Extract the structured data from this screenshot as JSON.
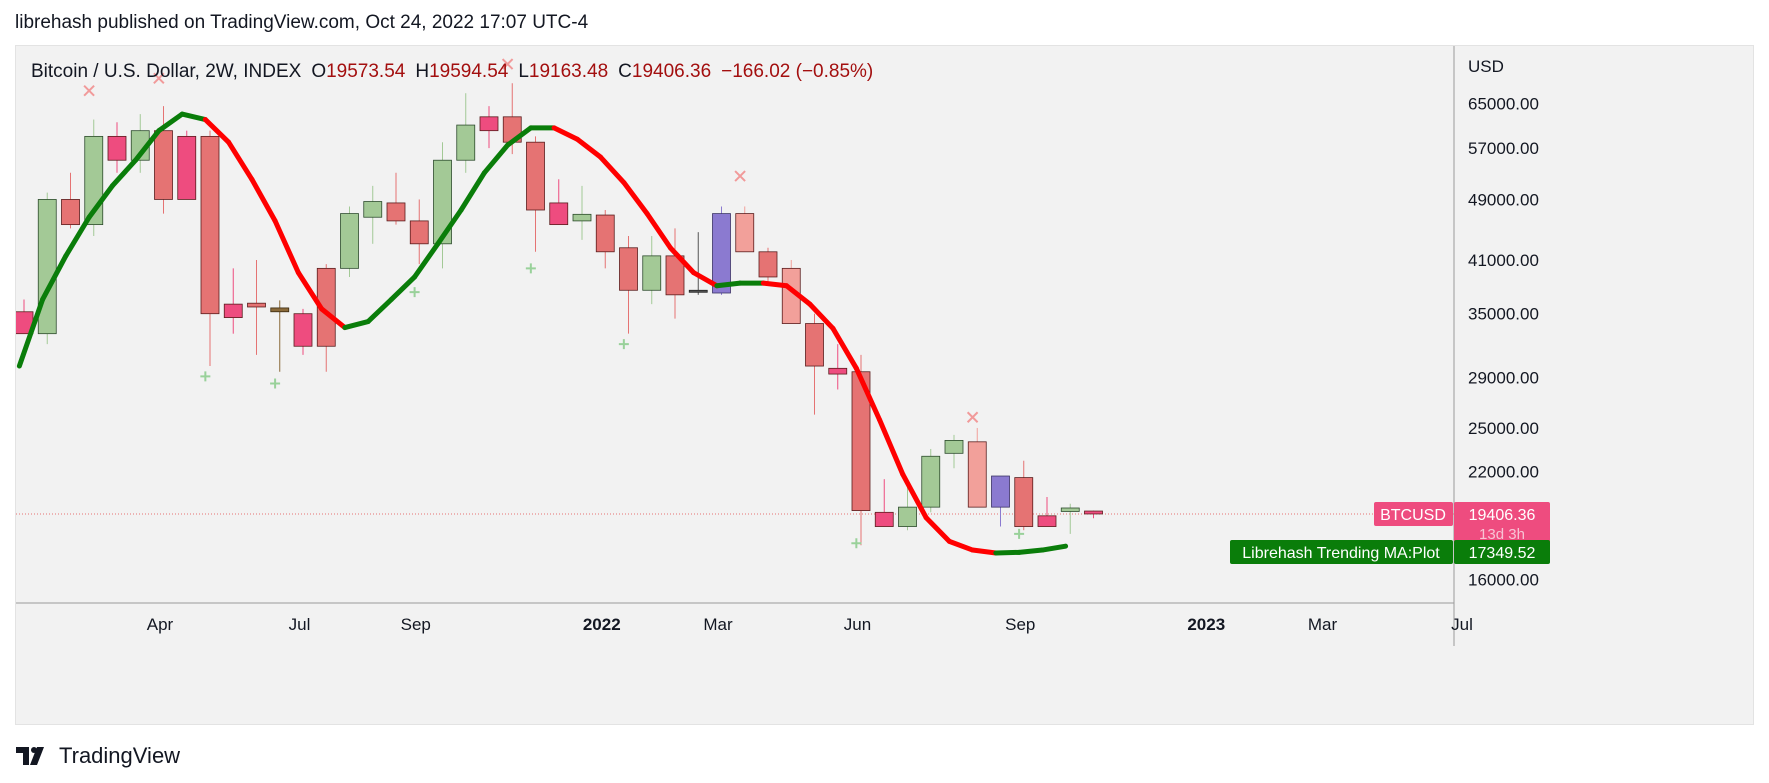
{
  "header": {
    "published": "librehash published on TradingView.com, Oct 24, 2022 17:07 UTC-4"
  },
  "legend": {
    "symbol": "Bitcoin / U.S. Dollar, 2W, INDEX",
    "o_label": "O",
    "o_value": "19573.54",
    "h_label": "H",
    "h_value": "19594.54",
    "l_label": "L",
    "l_value": "19163.48",
    "c_label": "C",
    "c_value": "19406.36",
    "change": "−166.02 (−0.85%)"
  },
  "footer": {
    "brand": "TradingView"
  },
  "colors": {
    "background": "#f2f2f2",
    "ma_up": "#0a7d0a",
    "ma_down": "#ff0000",
    "candle_up": "#a3c996",
    "candle_down": "#e57373",
    "candle_pink": "#ee4c7f",
    "candle_purple": "#8b7ad0",
    "candle_salmon": "#f2a09a",
    "buy_marker": "#99d19a",
    "sell_marker": "#f19a9a",
    "price_line": "#e57373"
  },
  "chart_data": {
    "type": "candlestick",
    "title": "Bitcoin / U.S. Dollar, 2W, INDEX",
    "interval": "2W",
    "currency": "USD",
    "y_scale": "log",
    "ylim": [
      14000,
      76000
    ],
    "y_ticks": [
      65000,
      57000,
      49000,
      41000,
      35000,
      29000,
      25000,
      22000,
      16000
    ],
    "y_tick_labels": [
      "65000.00",
      "57000.00",
      "49000.00",
      "41000.00",
      "35000.00",
      "29000.00",
      "25000.00",
      "22000.00",
      "16000.00"
    ],
    "x_ticks": [
      {
        "label": "Apr",
        "index": 5.85,
        "bold": false
      },
      {
        "label": "Jul",
        "index": 11.85,
        "bold": false
      },
      {
        "label": "Sep",
        "index": 16.85,
        "bold": false
      },
      {
        "label": "2022",
        "index": 24.85,
        "bold": true
      },
      {
        "label": "Mar",
        "index": 29.85,
        "bold": false
      },
      {
        "label": "Jun",
        "index": 35.85,
        "bold": false
      },
      {
        "label": "Sep",
        "index": 42.85,
        "bold": false
      },
      {
        "label": "2023",
        "index": 50.85,
        "bold": true
      },
      {
        "label": "Mar",
        "index": 55.85,
        "bold": false
      },
      {
        "label": "Jul",
        "index": 61.85,
        "bold": false
      }
    ],
    "candles": [
      {
        "o": 35200,
        "h": 36500,
        "l": 33000,
        "c": 33000,
        "color": "pink"
      },
      {
        "o": 33000,
        "h": 50000,
        "l": 32000,
        "c": 49000,
        "color": "green"
      },
      {
        "o": 49000,
        "h": 53000,
        "l": 45000,
        "c": 45500,
        "color": "red"
      },
      {
        "o": 45500,
        "h": 62000,
        "l": 44000,
        "c": 59000,
        "color": "green"
      },
      {
        "o": 59000,
        "h": 61500,
        "l": 53000,
        "c": 55000,
        "color": "pink"
      },
      {
        "o": 55000,
        "h": 63000,
        "l": 53000,
        "c": 60000,
        "color": "green"
      },
      {
        "o": 60000,
        "h": 64500,
        "l": 47000,
        "c": 49000,
        "color": "red"
      },
      {
        "o": 59000,
        "h": 60000,
        "l": 49000,
        "c": 49000,
        "color": "pink"
      },
      {
        "o": 59000,
        "h": 60000,
        "l": 30000,
        "c": 35000,
        "color": "red"
      },
      {
        "o": 36000,
        "h": 40000,
        "l": 33000,
        "c": 34600,
        "color": "pink"
      },
      {
        "o": 36100,
        "h": 41000,
        "l": 31000,
        "c": 35700,
        "color": "red"
      },
      {
        "o": 35600,
        "h": 36400,
        "l": 29500,
        "c": 35200,
        "color": "brown"
      },
      {
        "o": 35000,
        "h": 35500,
        "l": 31000,
        "c": 31800,
        "color": "pink"
      },
      {
        "o": 31800,
        "h": 40500,
        "l": 29500,
        "c": 40000,
        "color": "red"
      },
      {
        "o": 40000,
        "h": 48000,
        "l": 39000,
        "c": 47000,
        "color": "green"
      },
      {
        "o": 46500,
        "h": 51000,
        "l": 43000,
        "c": 48700,
        "color": "green"
      },
      {
        "o": 48500,
        "h": 53000,
        "l": 45500,
        "c": 46000,
        "color": "red"
      },
      {
        "o": 46000,
        "h": 49000,
        "l": 40500,
        "c": 43000,
        "color": "red"
      },
      {
        "o": 43000,
        "h": 58000,
        "l": 40000,
        "c": 55000,
        "color": "green"
      },
      {
        "o": 55000,
        "h": 67000,
        "l": 53000,
        "c": 61000,
        "color": "green"
      },
      {
        "o": 62500,
        "h": 64500,
        "l": 57000,
        "c": 60000,
        "color": "pink"
      },
      {
        "o": 62500,
        "h": 69000,
        "l": 56000,
        "c": 58000,
        "color": "red"
      },
      {
        "o": 58000,
        "h": 59000,
        "l": 42000,
        "c": 47500,
        "color": "red"
      },
      {
        "o": 48500,
        "h": 52000,
        "l": 46000,
        "c": 45500,
        "color": "pink"
      },
      {
        "o": 46000,
        "h": 51000,
        "l": 43500,
        "c": 46900,
        "color": "green"
      },
      {
        "o": 46800,
        "h": 47500,
        "l": 40000,
        "c": 42000,
        "color": "red"
      },
      {
        "o": 42500,
        "h": 44000,
        "l": 33000,
        "c": 37500,
        "color": "red"
      },
      {
        "o": 37500,
        "h": 44000,
        "l": 36000,
        "c": 41500,
        "color": "green"
      },
      {
        "o": 41500,
        "h": 45000,
        "l": 34500,
        "c": 37000,
        "color": "red"
      },
      {
        "o": 37300,
        "h": 44500,
        "l": 37000,
        "c": 37500,
        "color": "dark"
      },
      {
        "o": 37200,
        "h": 48000,
        "l": 37000,
        "c": 47000,
        "color": "purple"
      },
      {
        "o": 47000,
        "h": 48000,
        "l": 42000,
        "c": 42000,
        "color": "salmon"
      },
      {
        "o": 42000,
        "h": 42500,
        "l": 38500,
        "c": 39000,
        "color": "red"
      },
      {
        "o": 40000,
        "h": 41000,
        "l": 34000,
        "c": 34000,
        "color": "salmon"
      },
      {
        "o": 34000,
        "h": 35000,
        "l": 26000,
        "c": 30000,
        "color": "red"
      },
      {
        "o": 29800,
        "h": 32000,
        "l": 28000,
        "c": 29300,
        "color": "pink"
      },
      {
        "o": 29500,
        "h": 31000,
        "l": 17700,
        "c": 19600,
        "color": "red"
      },
      {
        "o": 19500,
        "h": 21500,
        "l": 18700,
        "c": 18700,
        "color": "pink"
      },
      {
        "o": 18700,
        "h": 21000,
        "l": 18500,
        "c": 19800,
        "color": "green"
      },
      {
        "o": 19800,
        "h": 23500,
        "l": 19500,
        "c": 23000,
        "color": "green"
      },
      {
        "o": 23200,
        "h": 24500,
        "l": 22200,
        "c": 24100,
        "color": "green"
      },
      {
        "o": 24000,
        "h": 25000,
        "l": 19800,
        "c": 19800,
        "color": "salmon"
      },
      {
        "o": 19800,
        "h": 21700,
        "l": 18700,
        "c": 21700,
        "color": "purple"
      },
      {
        "o": 21600,
        "h": 22700,
        "l": 18500,
        "c": 18700,
        "color": "red"
      },
      {
        "o": 19300,
        "h": 20400,
        "l": 18700,
        "c": 18700,
        "color": "pink"
      },
      {
        "o": 19750,
        "h": 20000,
        "l": 18300,
        "c": 19550,
        "color": "green"
      },
      {
        "o": 19573.54,
        "h": 19594.54,
        "l": 19163.48,
        "c": 19406.36,
        "color": "pink"
      }
    ],
    "ma_series": {
      "name": "Librehash Trending MA:Plot",
      "values": [
        {
          "i": -0.2,
          "v": 30000,
          "trend": "up"
        },
        {
          "i": 0.8,
          "v": 36500,
          "trend": "up"
        },
        {
          "i": 1.8,
          "v": 41500,
          "trend": "up"
        },
        {
          "i": 2.8,
          "v": 46500,
          "trend": "up"
        },
        {
          "i": 3.8,
          "v": 51000,
          "trend": "up"
        },
        {
          "i": 4.8,
          "v": 55000,
          "trend": "up"
        },
        {
          "i": 5.8,
          "v": 60000,
          "trend": "up"
        },
        {
          "i": 6.8,
          "v": 63000,
          "trend": "up"
        },
        {
          "i": 7.8,
          "v": 62000,
          "trend": "down"
        },
        {
          "i": 8.8,
          "v": 58000,
          "trend": "down"
        },
        {
          "i": 9.8,
          "v": 52000,
          "trend": "down"
        },
        {
          "i": 10.8,
          "v": 46000,
          "trend": "down"
        },
        {
          "i": 11.8,
          "v": 39500,
          "trend": "down"
        },
        {
          "i": 12.8,
          "v": 35500,
          "trend": "down"
        },
        {
          "i": 13.8,
          "v": 33600,
          "trend": "up"
        },
        {
          "i": 14.8,
          "v": 34200,
          "trend": "up"
        },
        {
          "i": 15.8,
          "v": 36500,
          "trend": "up"
        },
        {
          "i": 16.8,
          "v": 39000,
          "trend": "up"
        },
        {
          "i": 17.8,
          "v": 43000,
          "trend": "up"
        },
        {
          "i": 18.8,
          "v": 47500,
          "trend": "up"
        },
        {
          "i": 19.8,
          "v": 53000,
          "trend": "up"
        },
        {
          "i": 20.8,
          "v": 57500,
          "trend": "up"
        },
        {
          "i": 21.8,
          "v": 60500,
          "trend": "up"
        },
        {
          "i": 22.8,
          "v": 60500,
          "trend": "down"
        },
        {
          "i": 23.8,
          "v": 58500,
          "trend": "down"
        },
        {
          "i": 24.8,
          "v": 55500,
          "trend": "down"
        },
        {
          "i": 25.8,
          "v": 51500,
          "trend": "down"
        },
        {
          "i": 26.8,
          "v": 47000,
          "trend": "down"
        },
        {
          "i": 27.8,
          "v": 42500,
          "trend": "down"
        },
        {
          "i": 28.8,
          "v": 39500,
          "trend": "down"
        },
        {
          "i": 29.8,
          "v": 38000,
          "trend": "up"
        },
        {
          "i": 30.8,
          "v": 38300,
          "trend": "up"
        },
        {
          "i": 31.8,
          "v": 38300,
          "trend": "down"
        },
        {
          "i": 32.8,
          "v": 38000,
          "trend": "down"
        },
        {
          "i": 33.8,
          "v": 36000,
          "trend": "down"
        },
        {
          "i": 34.8,
          "v": 33500,
          "trend": "down"
        },
        {
          "i": 35.8,
          "v": 29800,
          "trend": "down"
        },
        {
          "i": 36.8,
          "v": 25600,
          "trend": "down"
        },
        {
          "i": 37.8,
          "v": 21800,
          "trend": "down"
        },
        {
          "i": 38.8,
          "v": 19200,
          "trend": "down"
        },
        {
          "i": 39.8,
          "v": 17900,
          "trend": "down"
        },
        {
          "i": 40.8,
          "v": 17450,
          "trend": "down"
        },
        {
          "i": 41.8,
          "v": 17300,
          "trend": "up"
        },
        {
          "i": 42.8,
          "v": 17330,
          "trend": "up"
        },
        {
          "i": 43.8,
          "v": 17450,
          "trend": "up"
        },
        {
          "i": 44.8,
          "v": 17650,
          "trend": "up"
        }
      ]
    },
    "buy_markers": [
      {
        "i": 7.8,
        "v": 29100
      },
      {
        "i": 10.8,
        "v": 28500
      },
      {
        "i": 16.8,
        "v": 37300
      },
      {
        "i": 21.8,
        "v": 40000
      },
      {
        "i": 25.8,
        "v": 32000
      },
      {
        "i": 35.8,
        "v": 17800
      },
      {
        "i": 42.8,
        "v": 18300
      }
    ],
    "sell_markers": [
      {
        "i": 2.8,
        "v": 67500
      },
      {
        "i": 5.8,
        "v": 70000
      },
      {
        "i": 20.8,
        "v": 73000
      },
      {
        "i": 30.8,
        "v": 52500
      },
      {
        "i": 40.8,
        "v": 25800
      }
    ],
    "last_price": {
      "label": "BTCUSD",
      "value": "19406.36",
      "countdown": "13d 3h",
      "price": 19406.36
    },
    "ma_label": {
      "label": "Librehash Trending MA:Plot",
      "value": "17349.52",
      "price": 17349.52
    }
  }
}
